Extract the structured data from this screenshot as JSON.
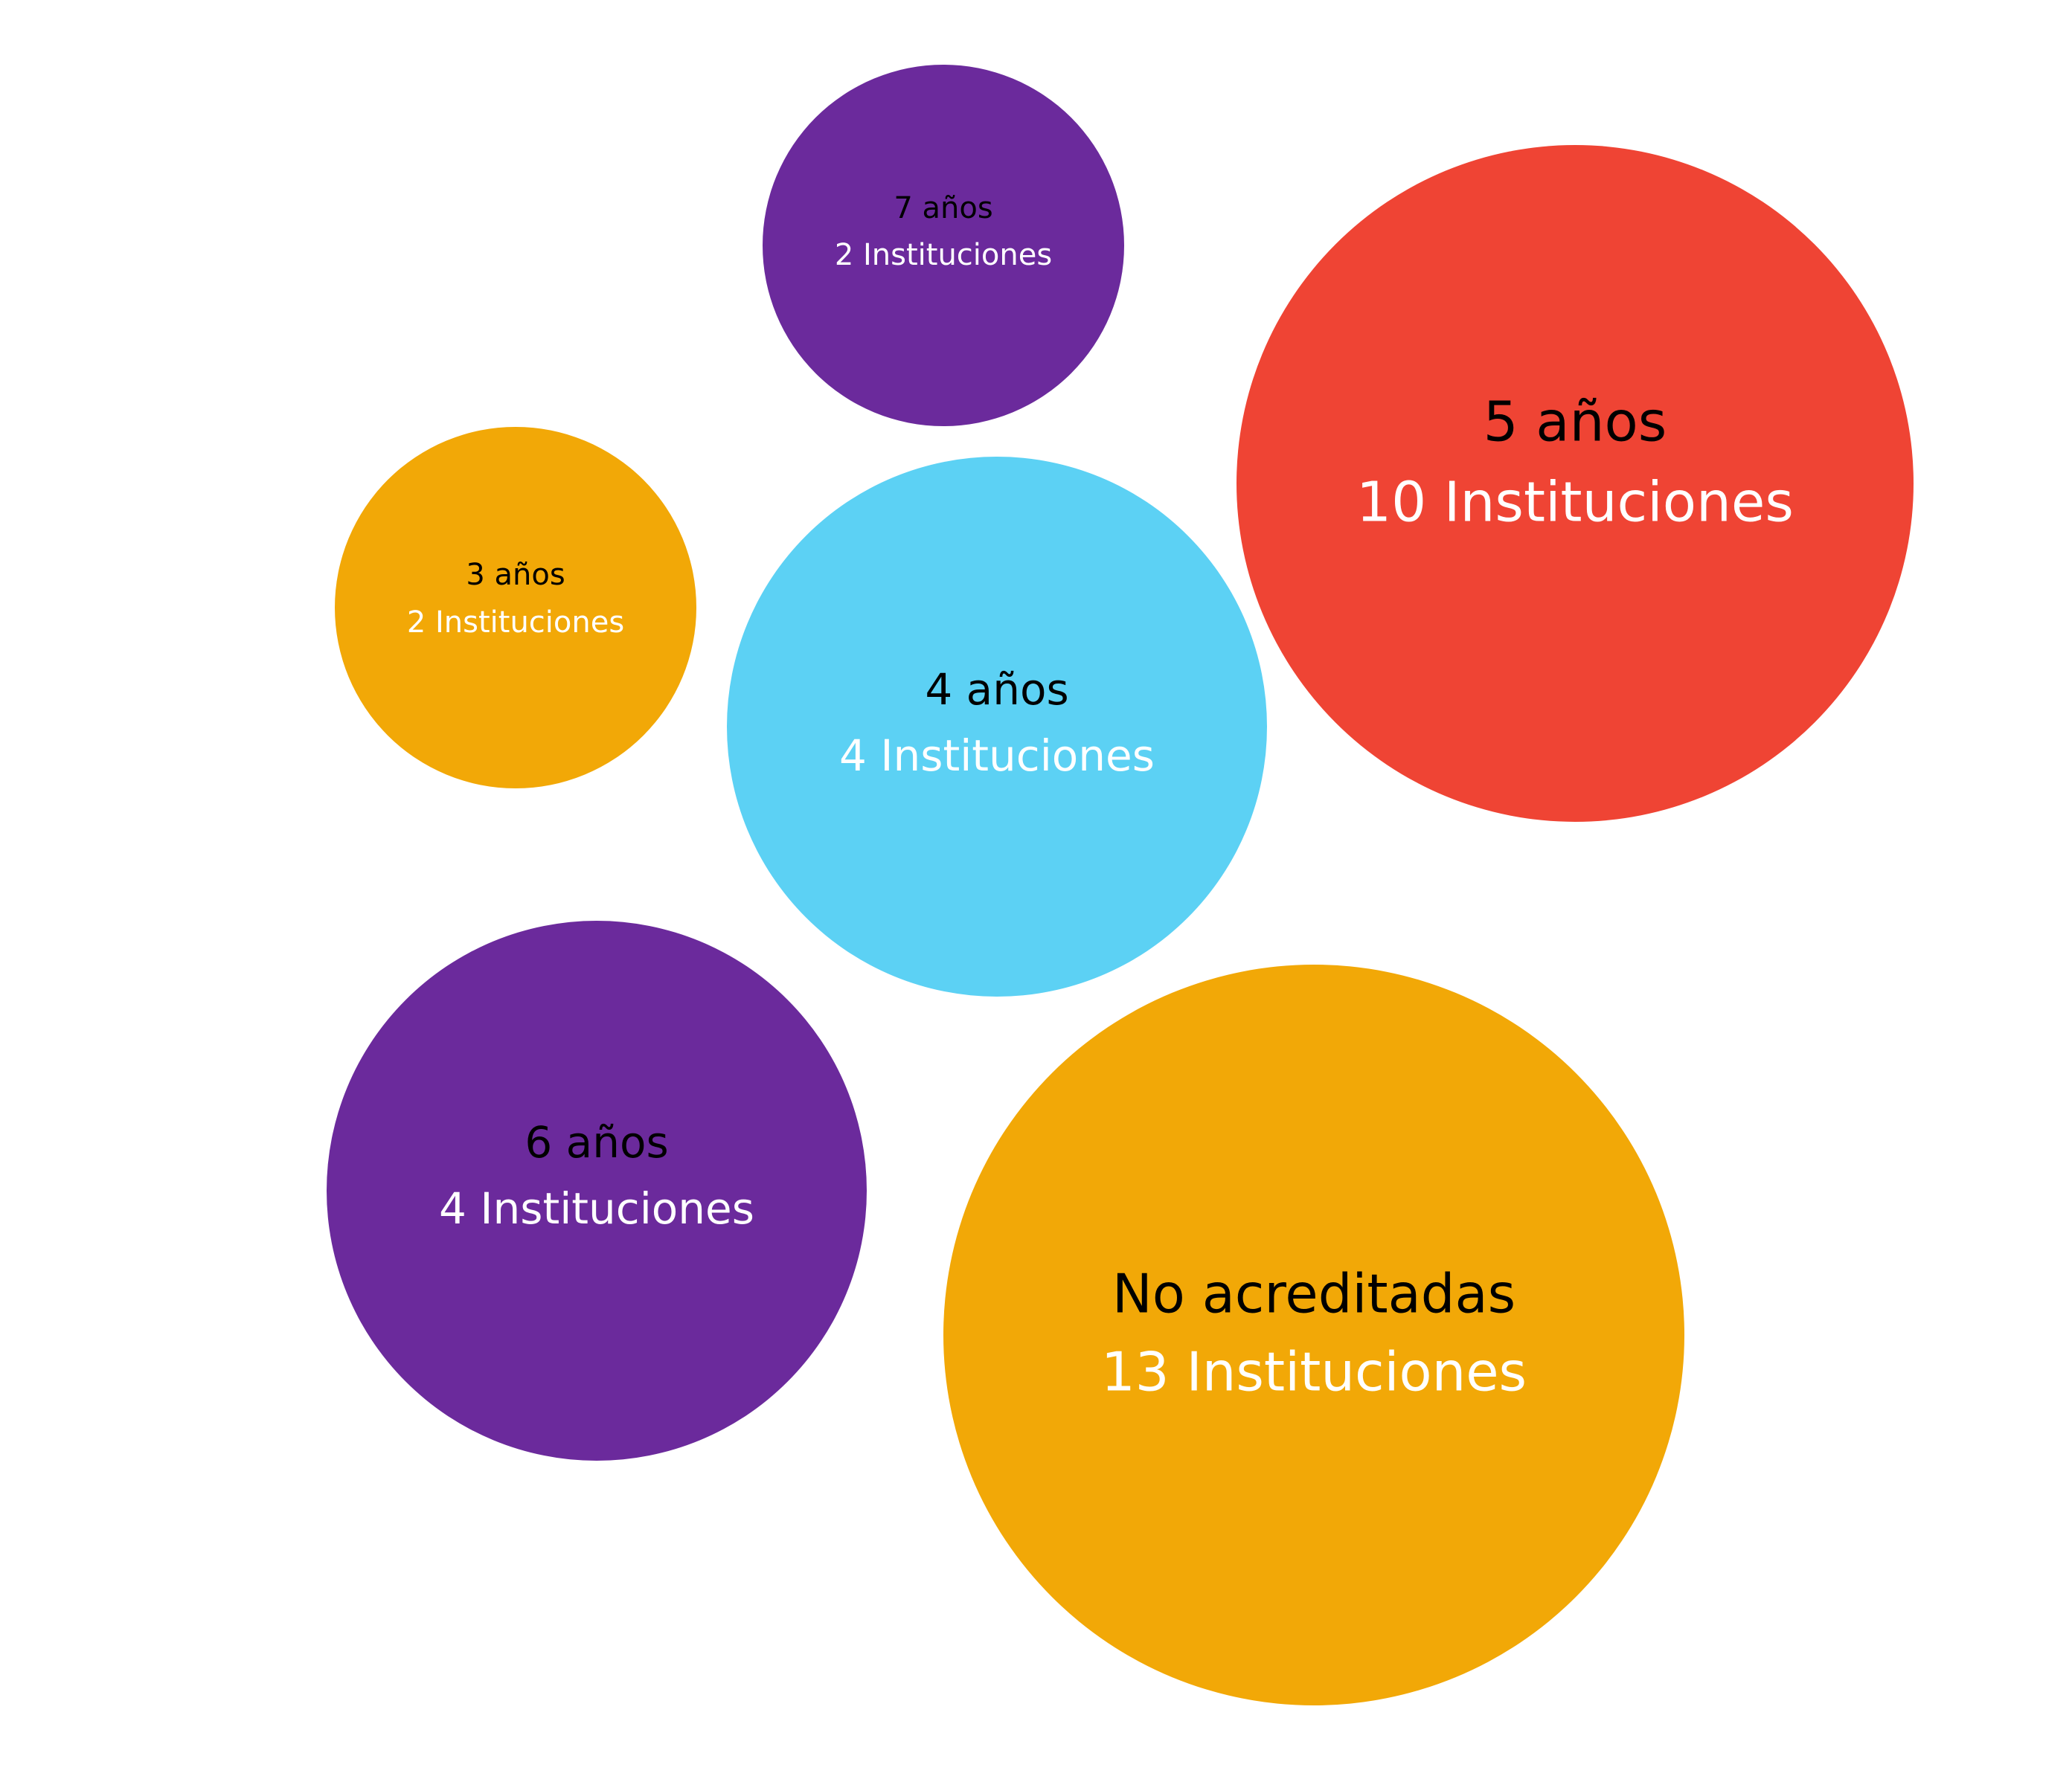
{
  "chart_data": {
    "type": "bubble",
    "title": "",
    "bubbles": [
      {
        "category": "7 años",
        "count_label": "2 Instituciones",
        "value": 2,
        "color": "#6B2A9C"
      },
      {
        "category": "5 años",
        "count_label": "10 Instituciones",
        "value": 10,
        "color": "#EF4434"
      },
      {
        "category": "3 años",
        "count_label": "2 Instituciones",
        "value": 2,
        "color": "#F2A807"
      },
      {
        "category": "4 años",
        "count_label": "4 Instituciones",
        "value": 4,
        "color": "#5CD1F4"
      },
      {
        "category": "6 años",
        "count_label": "4 Instituciones",
        "value": 4,
        "color": "#6B2A9C"
      },
      {
        "category": "No acreditadas",
        "count_label": "13 Instituciones",
        "value": 13,
        "color": "#F2A807"
      }
    ]
  }
}
